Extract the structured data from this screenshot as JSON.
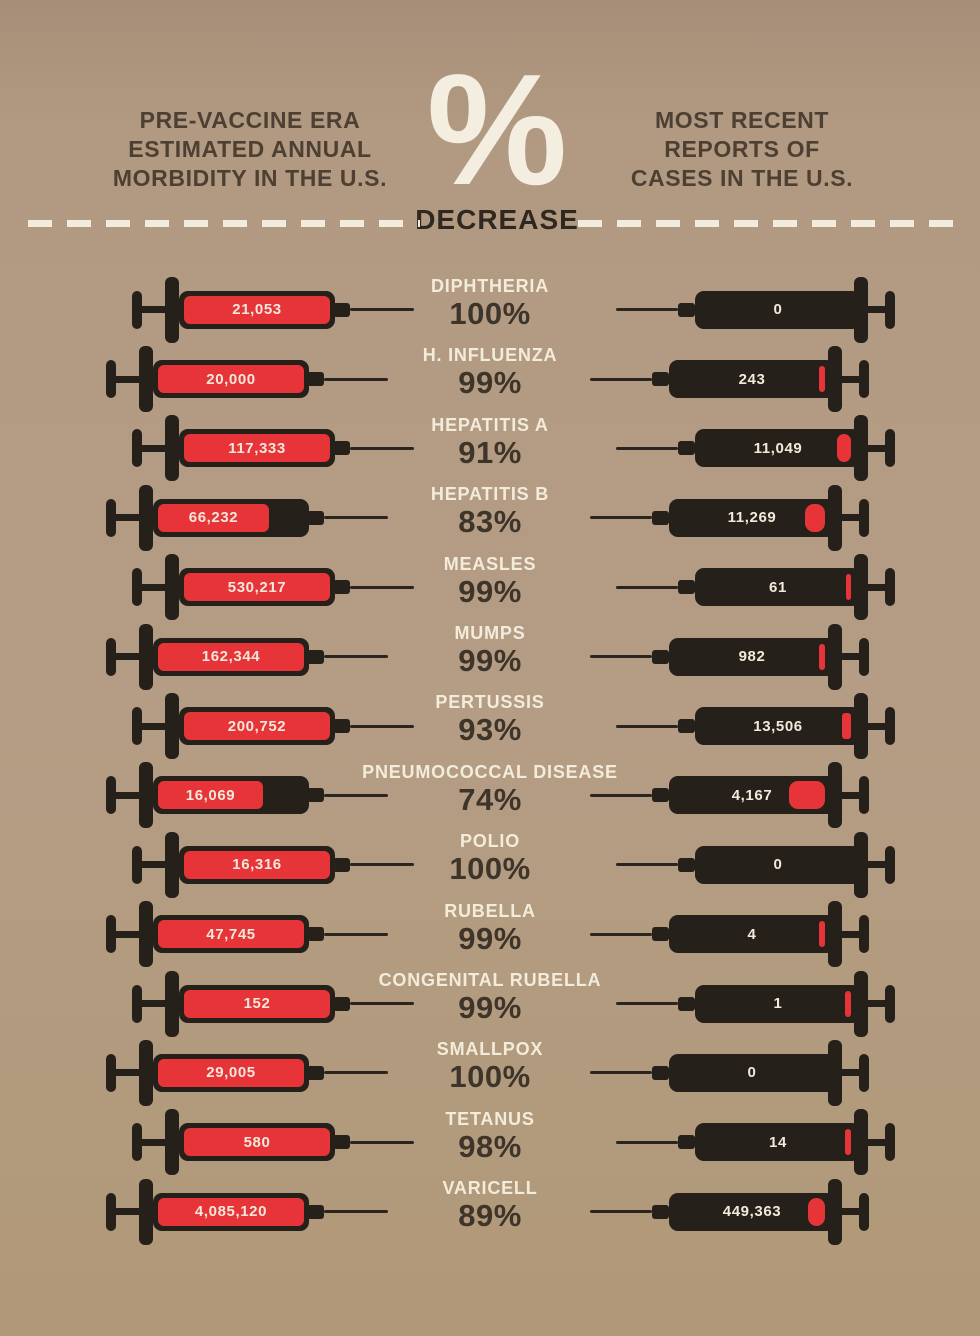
{
  "header": {
    "percent_symbol": "%",
    "decrease_label": "DECREASE",
    "left_title_lines": [
      "PRE-VACCINE ERA",
      "ESTIMATED ANNUAL",
      "MORBIDITY IN THE U.S."
    ],
    "right_title_lines": [
      "MOST RECENT",
      "REPORTS OF",
      "CASES IN THE U.S."
    ]
  },
  "colors": {
    "background": "#b29a82",
    "syringe_dark": "#252019",
    "red": "#e63439",
    "cream_text": "#f3ecdb",
    "dark_text": "#3d342a"
  },
  "chart_data": {
    "type": "bar",
    "title": "% DECREASE",
    "subtitle": "Vaccine impact: pre-vaccine era morbidity vs. most recent reported cases, U.S.",
    "categories": [
      "DIPHTHERIA",
      "H. INFLUENZA",
      "HEPATITIS A",
      "HEPATITIS B",
      "MEASLES",
      "MUMPS",
      "PERTUSSIS",
      "PNEUMOCOCCAL DISEASE",
      "POLIO",
      "RUBELLA",
      "CONGENITAL RUBELLA",
      "SMALLPOX",
      "TETANUS",
      "VARICELL"
    ],
    "series": [
      {
        "name": "Pre-vaccine era estimated annual morbidity in the U.S.",
        "values": [
          21053,
          20000,
          117333,
          66232,
          530217,
          162344,
          200752,
          16069,
          16316,
          47745,
          152,
          29005,
          580,
          4085120
        ]
      },
      {
        "name": "Most recent reports of cases in the U.S.",
        "values": [
          0,
          243,
          11049,
          11269,
          61,
          982,
          13506,
          4167,
          0,
          4,
          1,
          0,
          14,
          449363
        ]
      },
      {
        "name": "% decrease",
        "values": [
          100,
          99,
          91,
          83,
          99,
          99,
          93,
          74,
          100,
          99,
          99,
          100,
          98,
          89
        ]
      }
    ],
    "legend_position": "top",
    "grid": false
  },
  "rows": [
    {
      "name": "DIPHTHERIA",
      "pct": "100%",
      "left_value": "21,053",
      "right_value": "0",
      "left_fill_pct": 100,
      "right_fill_pct": 0
    },
    {
      "name": "H. INFLUENZA",
      "pct": "99%",
      "left_value": "20,000",
      "right_value": "243",
      "left_fill_pct": 100,
      "right_fill_pct": 4
    },
    {
      "name": "HEPATITIS A",
      "pct": "91%",
      "left_value": "117,333",
      "right_value": "11,049",
      "left_fill_pct": 100,
      "right_fill_pct": 9
    },
    {
      "name": "HEPATITIS B",
      "pct": "83%",
      "left_value": "66,232",
      "right_value": "11,269",
      "left_fill_pct": 76,
      "right_fill_pct": 13
    },
    {
      "name": "MEASLES",
      "pct": "99%",
      "left_value": "530,217",
      "right_value": "61",
      "left_fill_pct": 100,
      "right_fill_pct": 3
    },
    {
      "name": "MUMPS",
      "pct": "99%",
      "left_value": "162,344",
      "right_value": "982",
      "left_fill_pct": 100,
      "right_fill_pct": 4
    },
    {
      "name": "PERTUSSIS",
      "pct": "93%",
      "left_value": "200,752",
      "right_value": "13,506",
      "left_fill_pct": 100,
      "right_fill_pct": 6
    },
    {
      "name": "PNEUMOCOCCAL DISEASE",
      "pct": "74%",
      "left_value": "16,069",
      "right_value": "4,167",
      "left_fill_pct": 72,
      "right_fill_pct": 24
    },
    {
      "name": "POLIO",
      "pct": "100%",
      "left_value": "16,316",
      "right_value": "0",
      "left_fill_pct": 100,
      "right_fill_pct": 0
    },
    {
      "name": "RUBELLA",
      "pct": "99%",
      "left_value": "47,745",
      "right_value": "4",
      "left_fill_pct": 100,
      "right_fill_pct": 4
    },
    {
      "name": "CONGENITAL RUBELLA",
      "pct": "99%",
      "left_value": "152",
      "right_value": "1",
      "left_fill_pct": 100,
      "right_fill_pct": 4
    },
    {
      "name": "SMALLPOX",
      "pct": "100%",
      "left_value": "29,005",
      "right_value": "0",
      "left_fill_pct": 100,
      "right_fill_pct": 0
    },
    {
      "name": "TETANUS",
      "pct": "98%",
      "left_value": "580",
      "right_value": "14",
      "left_fill_pct": 100,
      "right_fill_pct": 4
    },
    {
      "name": "VARICELL",
      "pct": "89%",
      "left_value": "4,085,120",
      "right_value": "449,363",
      "left_fill_pct": 100,
      "right_fill_pct": 11
    }
  ]
}
